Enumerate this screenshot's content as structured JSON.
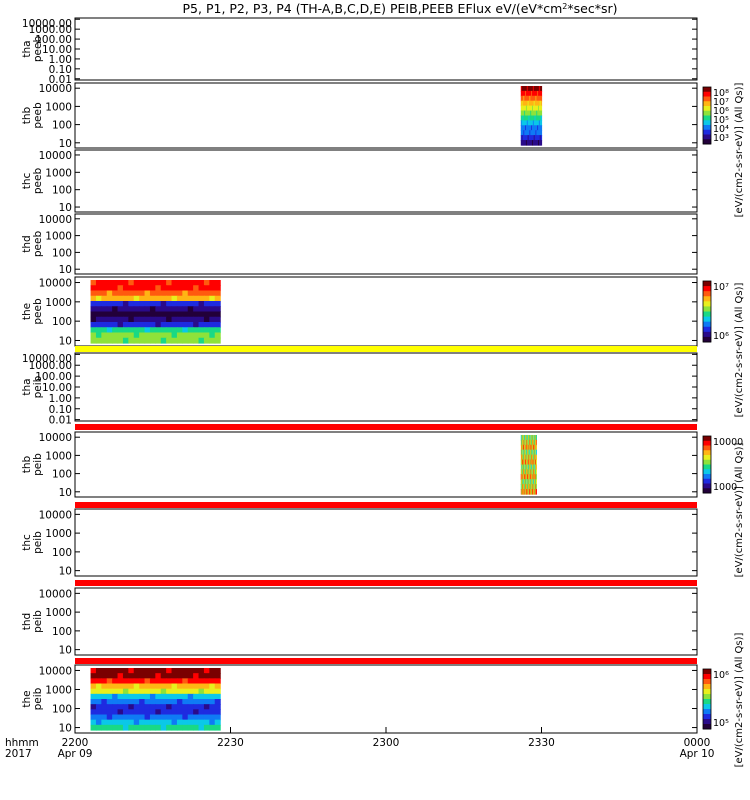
{
  "title": "P5, P1, P2, P3, P4 (TH-A,B,C,D,E) PEIB,PEEB EFlux eV/(eV*cm2*sec*sr)",
  "title_super": "2",
  "colors": {
    "spectrum": [
      "#22003a",
      "#2a0a8a",
      "#1e2be0",
      "#0f7af5",
      "#0bc8e8",
      "#19d985",
      "#8ee23a",
      "#e8ef1d",
      "#ffb514",
      "#ff5a0f",
      "#ff0000",
      "#7a0000"
    ],
    "bar_yellow": "#ffff00",
    "bar_red": "#ff0000"
  },
  "chart_data": {
    "type": "heatmap",
    "time_axis": {
      "ticks": [
        {
          "value": "2200",
          "date": "Apr 09"
        },
        {
          "value": "2230",
          "date": ""
        },
        {
          "value": "2300",
          "date": ""
        },
        {
          "value": "2330",
          "date": ""
        },
        {
          "value": "0000",
          "date": "Apr 10"
        }
      ],
      "label_top": "hhmm",
      "label_bottom": "2017"
    },
    "panels": [
      {
        "label": [
          "tha",
          "peeb"
        ],
        "ticks": [
          "10000.00",
          "1000.00",
          "100.00",
          "10.00",
          "1.00",
          "0.10",
          "0.01"
        ],
        "colorbar": null,
        "data": [],
        "below_bar": null
      },
      {
        "label": [
          "thb",
          "peeb"
        ],
        "ticks": [
          "10000",
          "1000",
          "100",
          "10"
        ],
        "colorbar": {
          "ticks": [
            "10⁸",
            "10⁷",
            "10⁶",
            "10⁵",
            "10⁴",
            "10³"
          ],
          "label": ""
        },
        "data": [
          {
            "t_start": "23:26",
            "t_end": "23:30",
            "profile": [
              11,
              10,
              9,
              8,
              7,
              6,
              5,
              4,
              3,
              3,
              2,
              1
            ]
          }
        ],
        "below_bar": null
      },
      {
        "label": [
          "thc",
          "peeb"
        ],
        "ticks": [
          "10000",
          "1000",
          "100",
          "10"
        ],
        "colorbar": null,
        "data": [],
        "below_bar": null
      },
      {
        "label": [
          "thd",
          "peeb"
        ],
        "ticks": [
          "10000",
          "1000",
          "100",
          "10"
        ],
        "colorbar": null,
        "data": [],
        "below_bar": null
      },
      {
        "label": [
          "the",
          "peeb"
        ],
        "ticks": [
          "10000",
          "1000",
          "100",
          "10"
        ],
        "colorbar": {
          "ticks": [
            "10⁷",
            "10⁶"
          ],
          "label": ""
        },
        "data": [
          {
            "t_start": "22:03",
            "t_end": "22:28",
            "profile": [
              10,
              10,
              9,
              8,
              2,
              1,
              0,
              1,
              2,
              5,
              6,
              6
            ]
          }
        ],
        "below_bar": "yellow"
      },
      {
        "label": [
          "tha",
          "peib"
        ],
        "ticks": [
          "10000.00",
          "1000.00",
          "100.00",
          "10.00",
          "1.00",
          "0.10",
          "0.01"
        ],
        "colorbar": null,
        "data": [],
        "below_bar": "red"
      },
      {
        "label": [
          "thb",
          "peib"
        ],
        "ticks": [
          "10000",
          "1000",
          "100",
          "10"
        ],
        "colorbar": {
          "ticks": [
            "10000",
            "1000"
          ],
          "label": ""
        },
        "data": [
          {
            "t_start": "23:26",
            "t_end": "23:29",
            "profile": [
              6,
              7,
              8,
              6,
              7,
              8,
              6,
              7,
              8,
              6,
              7,
              8
            ]
          }
        ],
        "below_bar": "red"
      },
      {
        "label": [
          "thc",
          "peib"
        ],
        "ticks": [
          "10000",
          "1000",
          "100",
          "10"
        ],
        "colorbar": null,
        "data": [],
        "below_bar": "red"
      },
      {
        "label": [
          "thd",
          "peib"
        ],
        "ticks": [
          "10000",
          "1000",
          "100",
          "10"
        ],
        "colorbar": null,
        "data": [],
        "below_bar": "red"
      },
      {
        "label": [
          "the",
          "peib"
        ],
        "ticks": [
          "10000",
          "1000",
          "100",
          "10"
        ],
        "colorbar": {
          "ticks": [
            "10⁶",
            "10⁵"
          ],
          "label": ""
        },
        "data": [
          {
            "t_start": "22:03",
            "t_end": "22:28",
            "profile": [
              11,
              11,
              10,
              8,
              7,
              4,
              3,
              2,
              2,
              3,
              4,
              5
            ]
          }
        ],
        "below_bar": null
      }
    ],
    "colorbar_labels": [
      "[eV/(cm2-s-sr-eV)] (All Qs)]",
      "[eV/(cm2-s-sr-eV)] (All Qs)]",
      "[eV/(cm2-s-sr-eV)] (All Qs)]",
      "[eV/(cm2-s-sr-eV)] (All Qs)]"
    ]
  }
}
